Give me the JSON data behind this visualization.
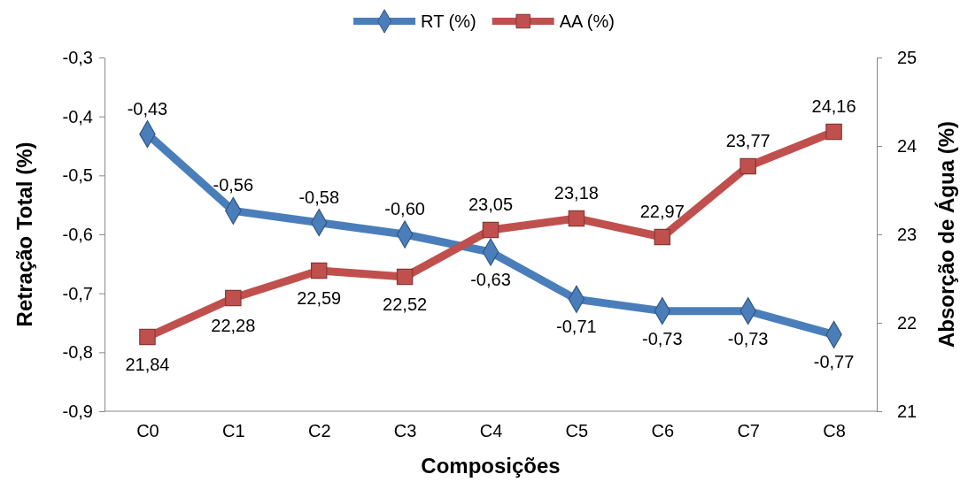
{
  "chart_data": {
    "type": "line",
    "xlabel": "Composições",
    "ylabel": "Retração Total (%)",
    "y2label": "Absorção de Água (%)",
    "categories": [
      "C0",
      "C1",
      "C2",
      "C3",
      "C4",
      "C5",
      "C6",
      "C7",
      "C8"
    ],
    "series": [
      {
        "name": "RT (%)",
        "color": "#4a7ebb",
        "marker": "diamond",
        "values": [
          -0.43,
          -0.56,
          -0.58,
          -0.6,
          -0.63,
          -0.71,
          -0.73,
          -0.73,
          -0.77
        ],
        "value_labels": [
          "-0,43",
          "-0,56",
          "-0,58",
          "-0,60",
          "-0,63",
          "-0,71",
          "-0,73",
          "-0,73",
          "-0,77"
        ]
      },
      {
        "name": "AA (%)",
        "color": "#c0504d",
        "marker": "square",
        "axis": "y2",
        "values": [
          21.84,
          22.28,
          22.59,
          22.52,
          23.05,
          23.18,
          22.97,
          23.77,
          24.16
        ],
        "value_labels": [
          "21,84",
          "22,28",
          "22,59",
          "22,52",
          "23,05",
          "23,18",
          "22,97",
          "23,77",
          "24,16"
        ]
      }
    ],
    "ylim": [
      -0.9,
      -0.3
    ],
    "yticks": [
      {
        "value": -0.9,
        "label": "-0,9"
      },
      {
        "value": -0.8,
        "label": "-0,8"
      },
      {
        "value": -0.7,
        "label": "-0,7"
      },
      {
        "value": -0.6,
        "label": "-0,6"
      },
      {
        "value": -0.5,
        "label": "-0,5"
      },
      {
        "value": -0.4,
        "label": "-0,4"
      },
      {
        "value": -0.3,
        "label": "-0,3"
      }
    ],
    "y2lim": [
      21,
      25
    ],
    "y2ticks": [
      21,
      22,
      23,
      24,
      25
    ],
    "grid": false,
    "legend": "top"
  }
}
